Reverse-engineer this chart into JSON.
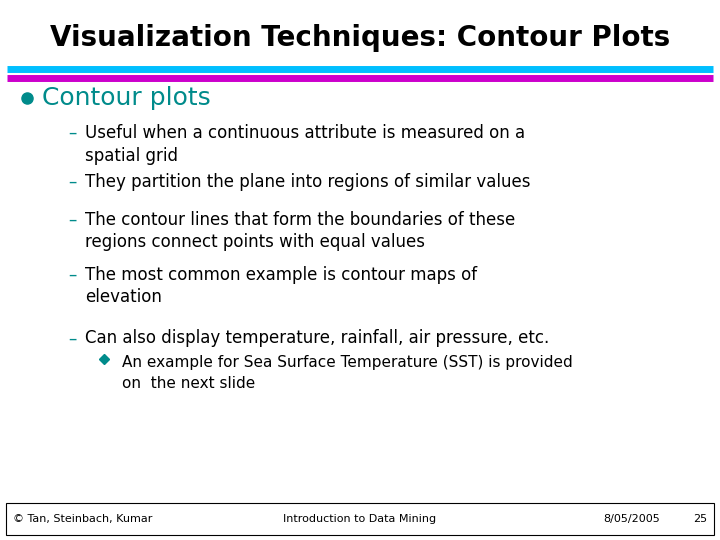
{
  "title": "Visualization Techniques: Contour Plots",
  "title_color": "#000000",
  "title_fontsize": 20,
  "line1_color": "#00BFFF",
  "line2_color": "#CC00CC",
  "bg_color": "#FFFFFF",
  "bullet_color": "#008B8B",
  "bullet_text": "Contour plots",
  "bullet_fontsize": 18,
  "dash_items": [
    [
      "Useful when a continuous attribute is measured on a",
      "spatial grid"
    ],
    [
      "They partition the plane into regions of similar values"
    ],
    [
      "The contour lines that form the boundaries of these",
      "regions connect points with equal values"
    ],
    [
      "The most common example is contour maps of",
      "elevation"
    ],
    [
      "Can also display temperature, rainfall, air pressure, etc."
    ]
  ],
  "sub_bullet_lines": [
    "An example for Sea Surface Temperature (SST) is provided",
    "on  the next slide"
  ],
  "dash_color": "#008B8B",
  "text_color": "#000000",
  "dash_fontsize": 12,
  "sub_bullet_fontsize": 11,
  "footer_left": "© Tan, Steinbach, Kumar",
  "footer_center": "Introduction to Data Mining",
  "footer_right": "8/05/2005",
  "footer_page": "25",
  "footer_fontsize": 8
}
